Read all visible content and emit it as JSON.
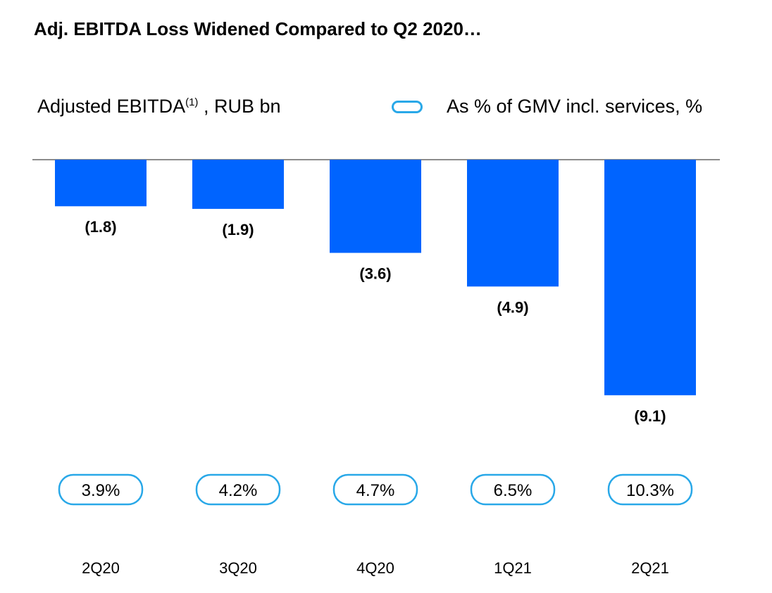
{
  "title": "Adj. EBITDA Loss Widened Compared to Q2 2020…",
  "subtitle": {
    "main": "Adjusted EBITDA",
    "superscript": "(1)",
    "unit": " , RUB bn"
  },
  "legend": {
    "label": "As % of GMV incl. services, %",
    "icon": "rounded-outline-pill",
    "color": "#29a8e8"
  },
  "colors": {
    "bar": "#0064ff",
    "pill_border": "#29a8e8",
    "axis": "#666666"
  },
  "chart_data": {
    "type": "bar",
    "title": "Adj. EBITDA Loss Widened Compared to Q2 2020…",
    "ylabel": "Adjusted EBITDA, RUB bn",
    "xlabel": "",
    "categories": [
      "2Q20",
      "3Q20",
      "4Q20",
      "1Q21",
      "2Q21"
    ],
    "values": [
      -1.8,
      -1.9,
      -3.6,
      -4.9,
      -9.1
    ],
    "value_labels": [
      "(1.8)",
      "(1.9)",
      "(3.6)",
      "(4.9)",
      "(9.1)"
    ],
    "ylim": [
      -10,
      0
    ],
    "grid": false,
    "secondary_series": {
      "name": "As % of GMV incl. services, %",
      "values": [
        3.9,
        4.2,
        4.7,
        6.5,
        10.3
      ],
      "labels": [
        "3.9%",
        "4.2%",
        "4.7%",
        "6.5%",
        "10.3%"
      ]
    }
  }
}
